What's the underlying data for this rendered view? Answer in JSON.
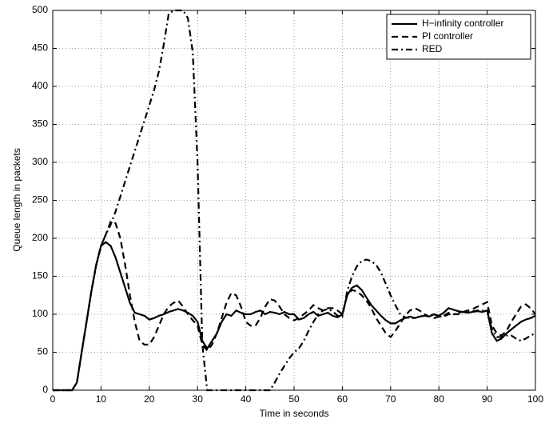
{
  "chart_data": {
    "type": "line",
    "xlabel": "Time in seconds",
    "ylabel": "Queue length in packets",
    "x": [
      0,
      1,
      2,
      3,
      4,
      5,
      6,
      7,
      8,
      9,
      10,
      11,
      12,
      13,
      14,
      15,
      16,
      17,
      18,
      19,
      20,
      21,
      22,
      23,
      24,
      25,
      26,
      27,
      28,
      29,
      30,
      31,
      32,
      33,
      34,
      35,
      36,
      37,
      38,
      39,
      40,
      41,
      42,
      43,
      44,
      45,
      46,
      47,
      48,
      49,
      50,
      51,
      52,
      53,
      54,
      55,
      56,
      57,
      58,
      59,
      60,
      61,
      62,
      63,
      64,
      65,
      66,
      67,
      68,
      69,
      70,
      71,
      72,
      73,
      74,
      75,
      76,
      77,
      78,
      79,
      80,
      81,
      82,
      83,
      84,
      85,
      86,
      87,
      88,
      89,
      90,
      91,
      92,
      93,
      94,
      95,
      96,
      97,
      98,
      99,
      100
    ],
    "series": [
      {
        "name": "H−infinity controller",
        "color": "#000000",
        "linestyle": "solid",
        "values": [
          0,
          0,
          0,
          0,
          0,
          10,
          50,
          90,
          130,
          165,
          190,
          195,
          190,
          175,
          155,
          135,
          115,
          102,
          100,
          98,
          93,
          95,
          98,
          100,
          103,
          105,
          107,
          105,
          102,
          98,
          90,
          65,
          55,
          65,
          75,
          90,
          100,
          98,
          105,
          102,
          100,
          100,
          103,
          105,
          100,
          103,
          102,
          100,
          103,
          100,
          100,
          93,
          95,
          100,
          103,
          98,
          100,
          102,
          98,
          96,
          100,
          125,
          135,
          138,
          132,
          122,
          112,
          105,
          98,
          92,
          88,
          88,
          92,
          95,
          97,
          95,
          97,
          98,
          97,
          100,
          98,
          102,
          108,
          106,
          104,
          103,
          102,
          103,
          104,
          103,
          105,
          75,
          65,
          68,
          75,
          80,
          85,
          90,
          93,
          95,
          98
        ]
      },
      {
        "name": "PI controller",
        "color": "#000000",
        "linestyle": "dashed",
        "values": [
          0,
          0,
          0,
          0,
          0,
          10,
          50,
          90,
          130,
          165,
          190,
          205,
          222,
          220,
          200,
          165,
          125,
          90,
          65,
          60,
          60,
          70,
          85,
          100,
          110,
          115,
          118,
          110,
          100,
          92,
          85,
          60,
          52,
          60,
          75,
          95,
          115,
          128,
          125,
          110,
          90,
          85,
          85,
          95,
          110,
          120,
          118,
          110,
          100,
          95,
          92,
          95,
          100,
          105,
          112,
          108,
          105,
          108,
          108,
          105,
          100,
          125,
          132,
          130,
          125,
          118,
          108,
          95,
          85,
          75,
          70,
          78,
          88,
          98,
          105,
          108,
          105,
          100,
          97,
          95,
          97,
          98,
          102,
          100,
          100,
          103,
          105,
          107,
          110,
          113,
          116,
          85,
          75,
          72,
          78,
          90,
          100,
          110,
          113,
          108,
          100
        ]
      },
      {
        "name": "RED",
        "color": "#000000",
        "linestyle": "dashdot",
        "values": [
          0,
          0,
          0,
          0,
          0,
          10,
          50,
          90,
          130,
          165,
          190,
          205,
          218,
          235,
          255,
          275,
          295,
          315,
          335,
          355,
          375,
          395,
          420,
          455,
          495,
          500,
          500,
          500,
          490,
          445,
          300,
          60,
          0,
          0,
          0,
          0,
          0,
          0,
          0,
          0,
          0,
          0,
          0,
          0,
          0,
          0,
          10,
          22,
          32,
          42,
          50,
          55,
          65,
          78,
          90,
          100,
          105,
          107,
          104,
          98,
          97,
          130,
          150,
          163,
          170,
          172,
          170,
          165,
          155,
          140,
          125,
          112,
          100,
          96,
          95,
          95,
          97,
          98,
          98,
          100,
          97,
          97,
          100,
          100,
          102,
          103,
          103,
          104,
          105,
          105,
          105,
          80,
          70,
          70,
          72,
          72,
          68,
          65,
          68,
          72,
          75
        ]
      }
    ],
    "xlim": [
      0,
      100
    ],
    "xticks": [
      0,
      10,
      20,
      30,
      40,
      50,
      60,
      70,
      80,
      90,
      100
    ],
    "ylim": [
      0,
      500
    ],
    "yticks": [
      0,
      50,
      100,
      150,
      200,
      250,
      300,
      350,
      400,
      450,
      500
    ],
    "grid": true,
    "legend": "upper right"
  }
}
